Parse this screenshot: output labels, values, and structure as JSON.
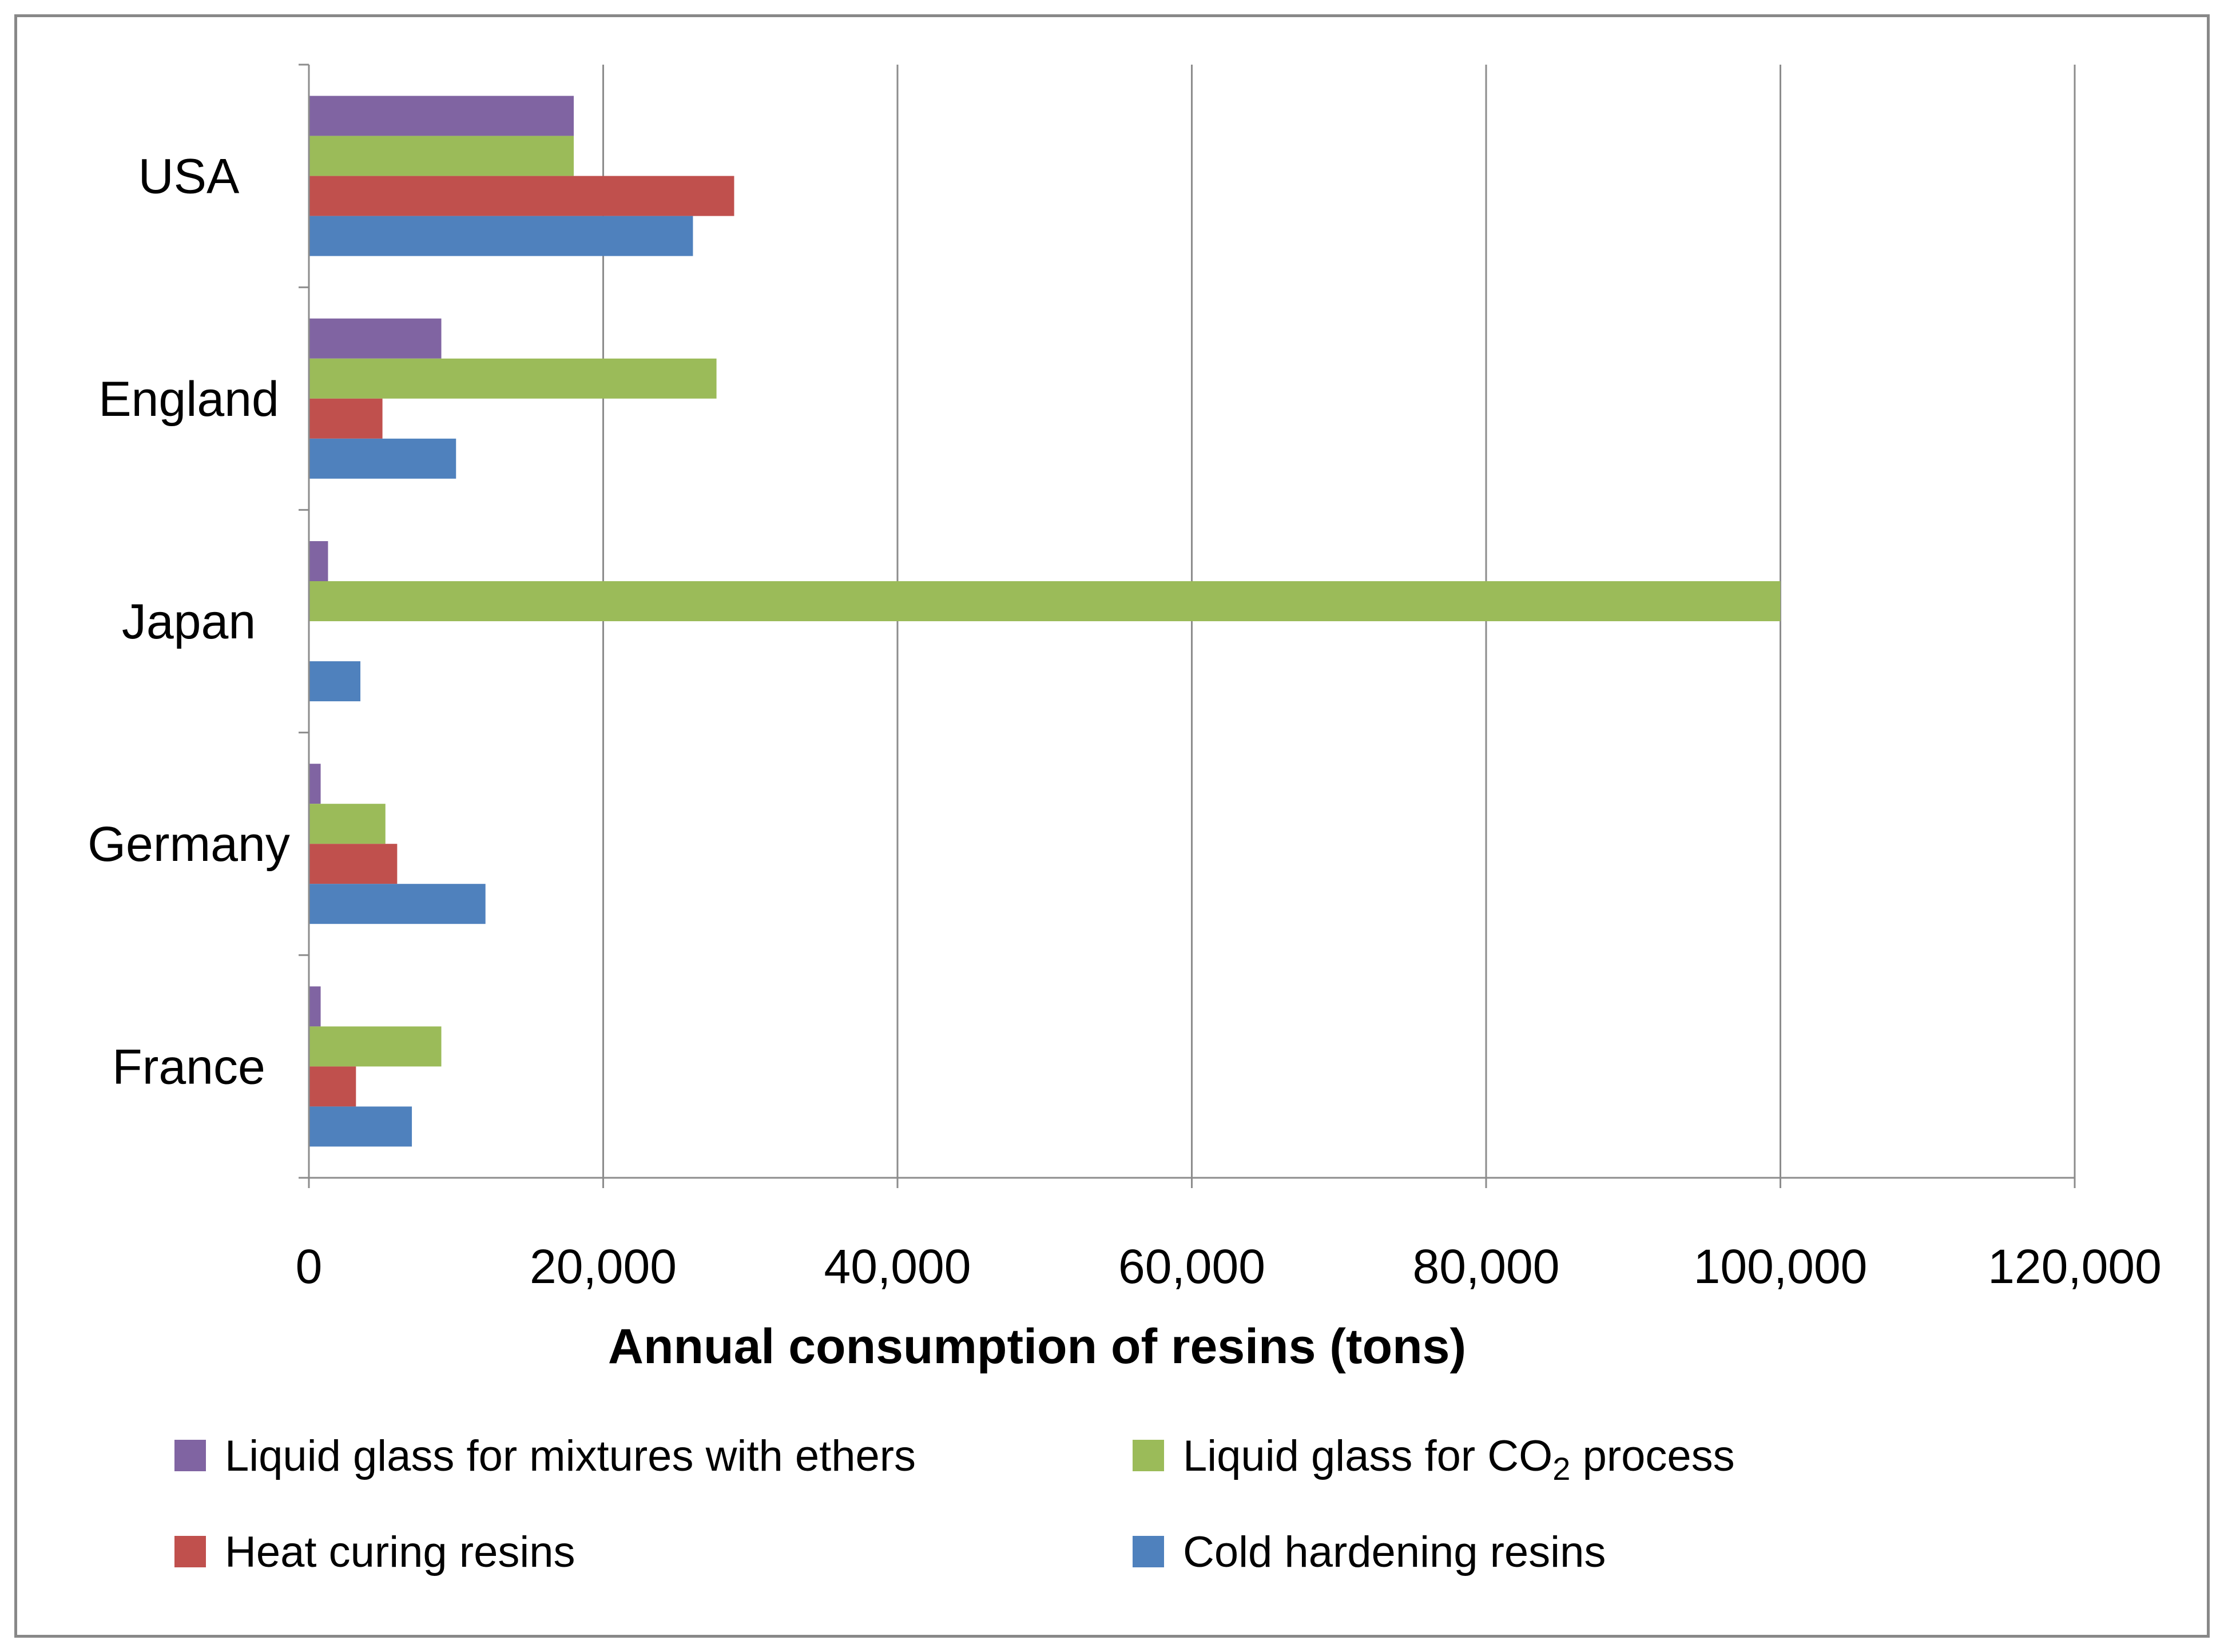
{
  "chart_data": {
    "type": "bar",
    "orientation": "horizontal",
    "title": "",
    "xlabel": "Annual consumption of resins (tons)",
    "ylabel": "",
    "xlim": [
      0,
      120000
    ],
    "xticks": [
      0,
      20000,
      40000,
      60000,
      80000,
      100000,
      120000
    ],
    "xtick_labels": [
      "0",
      "20,000",
      "40,000",
      "60,000",
      "80,000",
      "100,000",
      "120,000"
    ],
    "grid": "vertical",
    "categories": [
      "USA",
      "England",
      "Japan",
      "Germany",
      "France"
    ],
    "series": [
      {
        "name": "Liquid glass for mixtures with ethers",
        "color": "#8064a2",
        "values": [
          18000,
          9000,
          1300,
          800,
          800
        ]
      },
      {
        "name": "Liquid glass for CO2 process",
        "legend_parts": [
          "Liquid glass for CO",
          "2",
          " process"
        ],
        "color": "#9bbb59",
        "values": [
          18000,
          27700,
          100000,
          5200,
          9000
        ]
      },
      {
        "name": "Heat curing resins",
        "color": "#c0504d",
        "values": [
          28900,
          5000,
          0,
          6000,
          3200
        ]
      },
      {
        "name": "Cold hardening resins",
        "color": "#4f81bd",
        "values": [
          26100,
          10000,
          3500,
          12000,
          7000
        ]
      }
    ],
    "legend_position": "bottom"
  }
}
